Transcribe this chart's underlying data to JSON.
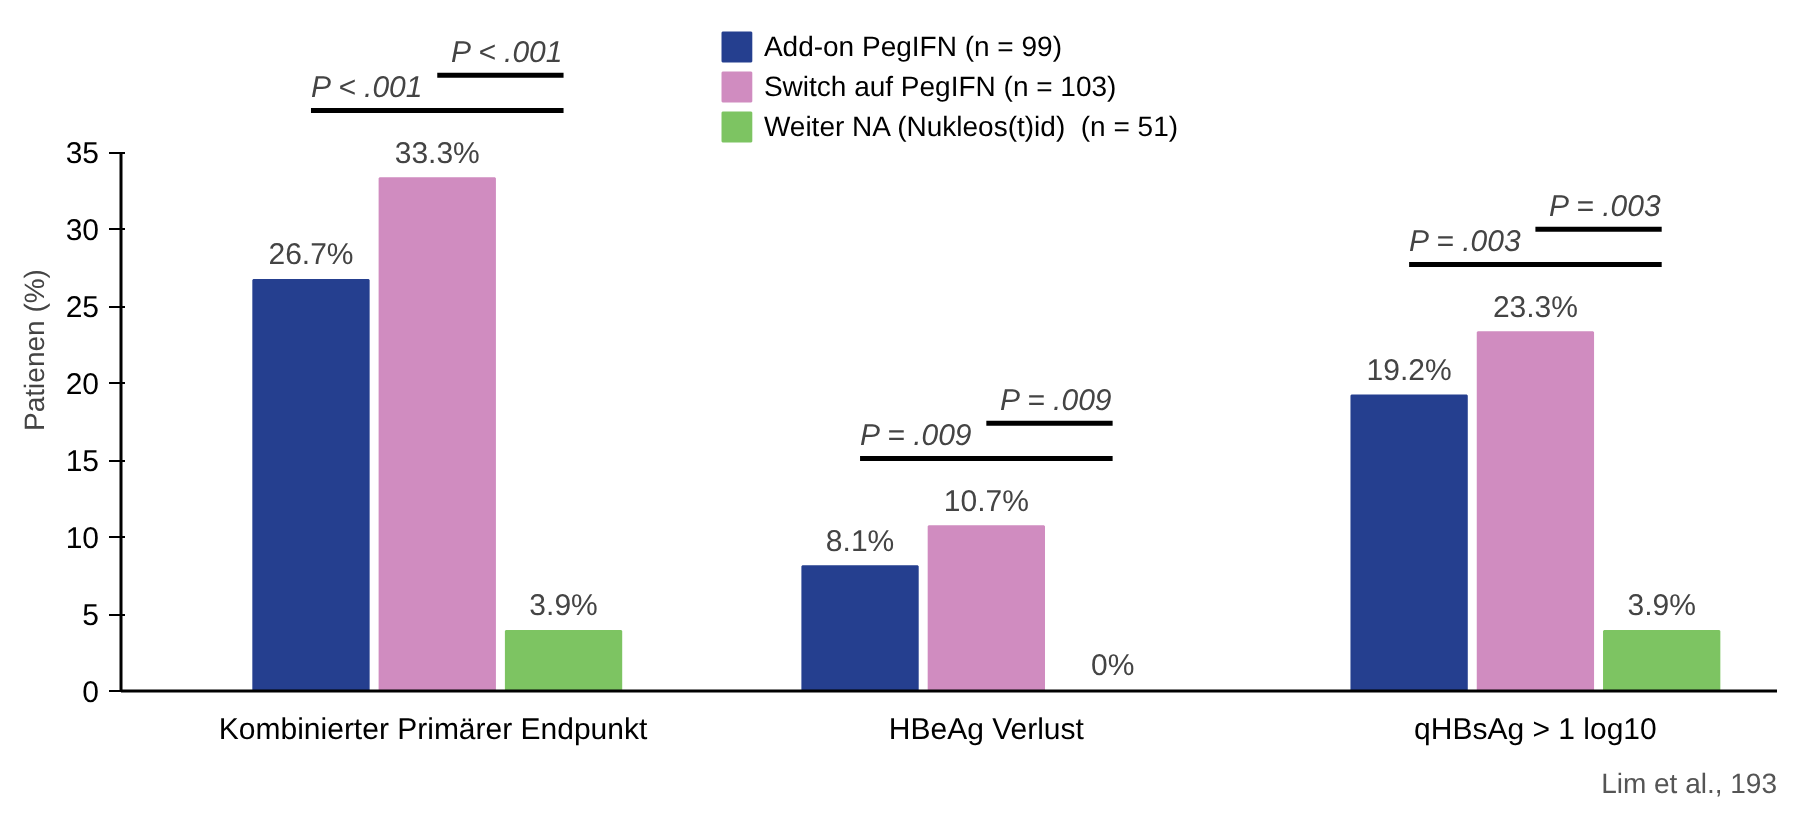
{
  "chart_data": {
    "type": "bar",
    "ylabel": "Patienen (%)",
    "categories": [
      "Kombinierter  Primärer Endpunkt",
      "HBeAg Verlust",
      "qHBsAg > 1 log10"
    ],
    "series": [
      {
        "name": "Add-on PegIFN (n = 99)",
        "color": "#253f8f",
        "values": [
          26.7,
          8.1,
          19.2
        ],
        "value_labels": [
          "26.7%",
          "8.1%",
          "19.2%"
        ]
      },
      {
        "name": "Switch auf PegIFN (n = 103)",
        "color": "#d08cc0",
        "values": [
          33.3,
          10.7,
          23.3
        ],
        "value_labels": [
          "33.3%",
          "10.7%",
          "23.3%"
        ]
      },
      {
        "name": "Weiter NA (Nukleos(t)id)  (n = 51)",
        "color": "#7dc462",
        "values": [
          3.9,
          0,
          3.9
        ],
        "value_labels": [
          "3.9%",
          "0%",
          "3.9%"
        ]
      }
    ],
    "ylim": [
      0,
      35
    ],
    "yticks": [
      0,
      5,
      10,
      15,
      20,
      25,
      30,
      35
    ],
    "grid": false,
    "legend": "top",
    "annotations": [
      "P < .001",
      "P < .001",
      "P = .009",
      "P = .009",
      "P = .003",
      "P = .003",
      "Lim et al., 193"
    ]
  }
}
